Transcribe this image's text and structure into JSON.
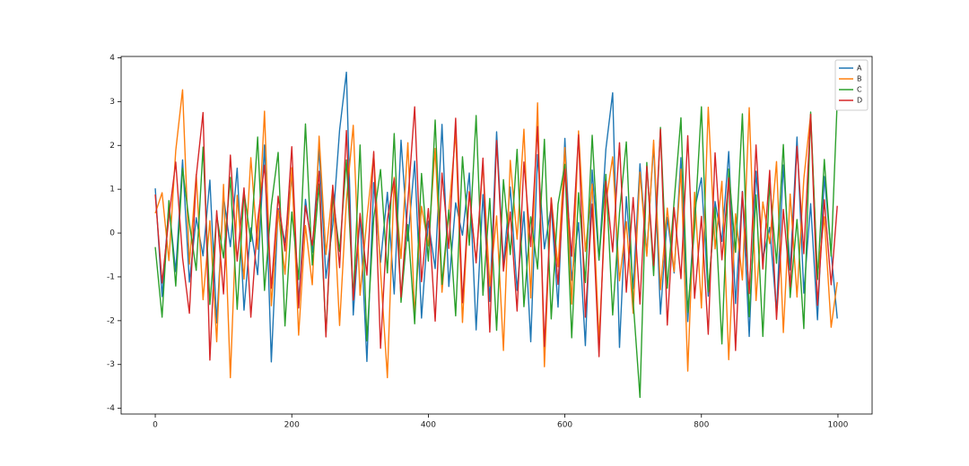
{
  "chart_data": {
    "type": "line",
    "x": [
      0,
      10,
      20,
      30,
      40,
      50,
      60,
      70,
      80,
      90,
      100,
      110,
      120,
      130,
      140,
      150,
      160,
      170,
      180,
      190,
      200,
      210,
      220,
      230,
      240,
      250,
      260,
      270,
      280,
      290,
      300,
      310,
      320,
      330,
      340,
      350,
      360,
      370,
      380,
      390,
      400,
      410,
      420,
      430,
      440,
      450,
      460,
      470,
      480,
      490,
      500,
      510,
      520,
      530,
      540,
      550,
      560,
      570,
      580,
      590,
      600,
      610,
      620,
      630,
      640,
      650,
      660,
      670,
      680,
      690,
      700,
      710,
      720,
      730,
      740,
      750,
      760,
      770,
      780,
      790,
      800,
      810,
      820,
      830,
      840,
      850,
      860,
      870,
      880,
      890,
      900,
      910,
      920,
      930,
      940,
      950,
      960,
      970,
      980,
      990,
      999
    ],
    "series": [
      {
        "name": "A",
        "color": "#1f77b4",
        "values": [
          1.02,
          -1.45,
          0.63,
          -0.88,
          1.67,
          -1.12,
          0.35,
          -0.52,
          1.21,
          -2.05,
          0.84,
          -0.31,
          1.48,
          -1.76,
          0.12,
          -0.95,
          2.01,
          -2.94,
          0.56,
          -0.22,
          1.33,
          -1.58,
          0.77,
          -0.44,
          1.92,
          -1.03,
          0.18,
          2.35,
          3.67,
          -1.87,
          0.41,
          -2.93,
          1.15,
          -0.67,
          0.93,
          -1.39,
          2.12,
          -0.18,
          1.64,
          -1.94,
          0.27,
          -0.81,
          2.48,
          -1.22,
          0.69,
          -0.05,
          1.37,
          -2.21,
          0.88,
          -1.56,
          2.31,
          -0.73,
          1.05,
          -1.31,
          0.49,
          -2.48,
          1.79,
          -0.36,
          0.61,
          -1.69,
          2.16,
          -1.08,
          0.24,
          -2.57,
          1.44,
          -0.62,
          1.91,
          3.2,
          -2.61,
          0.83,
          -1.27,
          1.58,
          -0.47,
          2.03,
          -1.85,
          0.36,
          -0.91,
          1.72,
          -2.02,
          0.54,
          1.26,
          -1.44,
          0.72,
          -0.19,
          1.86,
          -1.61,
          0.95,
          -2.36,
          1.41,
          -0.58,
          0.13,
          -1.79,
          1.55,
          -0.84,
          2.19,
          -1.37,
          0.67,
          -1.98,
          1.29,
          -0.45,
          -1.95
        ]
      },
      {
        "name": "B",
        "color": "#ff7f0e",
        "values": [
          0.45,
          0.92,
          -0.63,
          1.88,
          3.27,
          -0.71,
          1.34,
          -1.52,
          0.28,
          -2.48,
          1.11,
          -3.3,
          0.86,
          -1.05,
          1.72,
          -0.37,
          2.78,
          -1.66,
          0.52,
          -0.94,
          1.49,
          -2.33,
          0.17,
          -1.18,
          2.21,
          -0.49,
          1.06,
          -2.11,
          0.74,
          2.46,
          -1.42,
          0.33,
          1.81,
          -0.86,
          -3.3,
          1.27,
          -0.58,
          2.06,
          -1.87,
          0.61,
          -0.29,
          1.93,
          -1.35,
          0.48,
          2.29,
          -2.04,
          0.95,
          -0.66,
          1.58,
          -1.21,
          0.39,
          -2.68,
          1.66,
          -0.14,
          2.37,
          -1.48,
          2.97,
          -3.05,
          0.81,
          -0.77,
          1.95,
          -1.62,
          2.33,
          -0.42,
          1.12,
          -2.44,
          0.68,
          1.74,
          -1.09,
          0.26,
          -1.83,
          1.39,
          -0.53,
          2.12,
          -1.29,
          0.57,
          -0.88,
          1.46,
          -3.15,
          0.93,
          -1.71,
          2.87,
          -0.36,
          1.18,
          -2.89,
          0.44,
          -1.07,
          2.86,
          -1.54,
          0.71,
          -0.24,
          1.63,
          -2.27,
          0.89,
          -1.46,
          1.24,
          2.71,
          -0.98,
          0.37,
          -2.15,
          -1.12
        ]
      },
      {
        "name": "C",
        "color": "#2ca02c",
        "values": [
          -0.32,
          -1.92,
          0.74,
          -1.21,
          1.48,
          0.22,
          -0.85,
          1.96,
          -1.63,
          0.41,
          -0.57,
          1.27,
          -1.74,
          0.95,
          -0.19,
          2.19,
          -1.31,
          0.63,
          1.84,
          -2.12,
          0.48,
          -1.06,
          2.49,
          -0.73,
          1.12,
          -2.31,
          0.86,
          -0.42,
          1.67,
          -1.49,
          2.01,
          -2.46,
          0.34,
          1.45,
          -0.91,
          2.27,
          -1.58,
          0.19,
          -2.07,
          1.36,
          -0.64,
          2.58,
          -1.17,
          0.53,
          -1.89,
          1.74,
          -0.28,
          2.68,
          -1.42,
          0.79,
          -2.22,
          1.22,
          -0.49,
          1.91,
          -1.68,
          0.37,
          -0.82,
          2.14,
          -1.96,
          0.66,
          1.57,
          -2.39,
          0.92,
          -1.13,
          2.23,
          -0.61,
          1.34,
          -1.87,
          0.46,
          2.08,
          -1.55,
          -3.75,
          1.61,
          -0.97,
          2.41,
          -1.26,
          0.72,
          2.63,
          -1.81,
          0.13,
          2.88,
          -1.34,
          0.58,
          -2.53,
          1.46,
          -0.44,
          2.72,
          -1.91,
          0.87,
          -2.36,
          1.15,
          -0.69,
          2.02,
          -1.47,
          0.31,
          -2.18,
          2.76,
          -1.06,
          1.68,
          -0.53,
          3.05
        ]
      },
      {
        "name": "D",
        "color": "#d62728",
        "values": [
          0.88,
          -1.14,
          0.36,
          1.62,
          -0.57,
          -1.83,
          1.29,
          2.75,
          -2.9,
          0.51,
          -1.39,
          1.78,
          -0.64,
          1.03,
          -1.92,
          0.27,
          1.55,
          -1.26,
          0.84,
          -0.41,
          1.97,
          -1.71,
          0.62,
          -0.28,
          1.41,
          -2.37,
          1.09,
          -0.79,
          2.34,
          -1.53,
          0.45,
          -0.96,
          1.86,
          -2.63,
          0.31,
          1.24,
          -1.46,
          0.71,
          2.88,
          -1.11,
          0.56,
          -2.01,
          1.37,
          -0.35,
          2.62,
          -1.59,
          0.93,
          -0.68,
          1.71,
          -2.26,
          2.11,
          -0.87,
          0.48,
          -1.78,
          1.62,
          -0.31,
          2.43,
          -2.59,
          0.79,
          -1.17,
          1.46,
          -0.53,
          2.24,
          -1.92,
          0.66,
          -2.82,
          1.18,
          -0.43,
          2.06,
          -1.35,
          0.81,
          -1.62,
          1.52,
          -0.74,
          2.37,
          -2.1,
          0.58,
          -1.04,
          2.22,
          -1.49,
          0.38,
          -2.31,
          1.83,
          -0.61,
          1.26,
          -2.68,
          0.94,
          -1.38,
          2.01,
          -0.82,
          1.43,
          -1.97,
          0.54,
          -1.23,
          1.98,
          -0.47,
          2.71,
          -1.65,
          0.76,
          -1.18,
          0.62
        ]
      }
    ],
    "xlim": [
      -50,
      1050
    ],
    "xticks": [
      0,
      200,
      400,
      600,
      800,
      1000
    ],
    "ylim": [
      -4.13,
      4.03
    ],
    "yticks": [
      -4,
      -3,
      -2,
      -1,
      0,
      1,
      2,
      3,
      4
    ],
    "legend": "upper right"
  }
}
